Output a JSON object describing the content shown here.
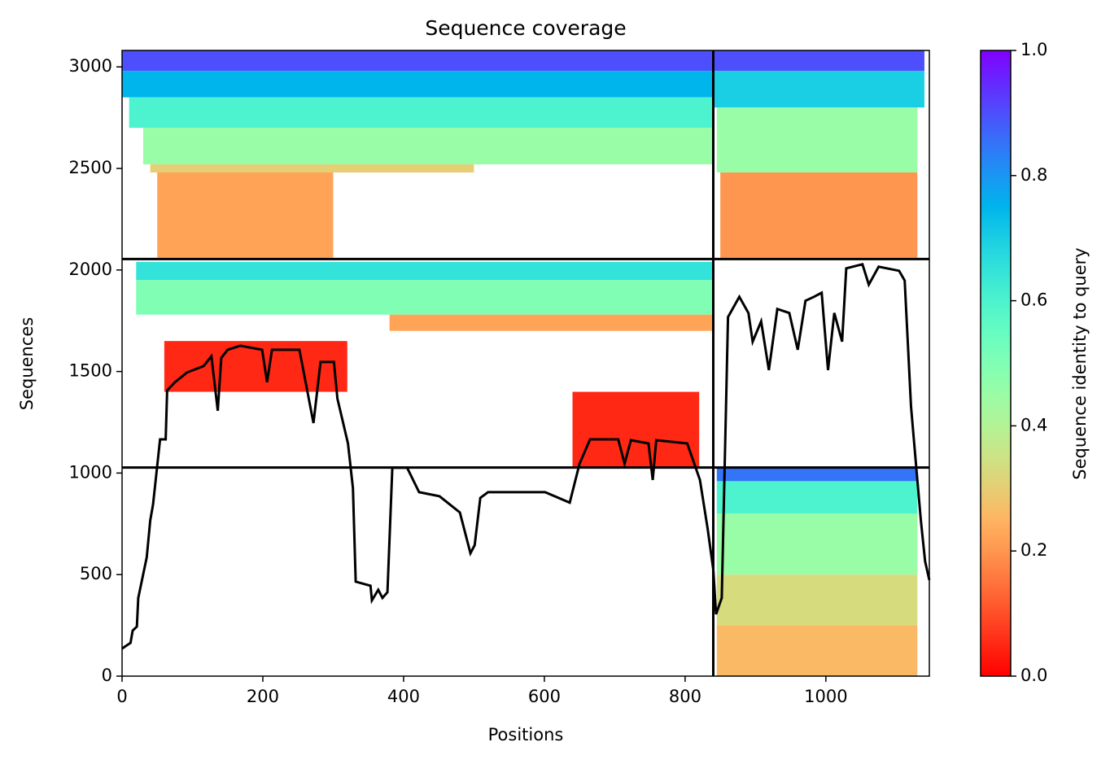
{
  "chart_data": {
    "type": "coverage",
    "title": "Sequence coverage",
    "xlabel": "Positions",
    "ylabel": "Sequences",
    "colorbar_label": "Sequence identity to query",
    "colormap": "rainbow_r",
    "xlim": [
      0,
      1147
    ],
    "ylim": [
      0,
      3081
    ],
    "xticks": [
      0,
      200,
      400,
      600,
      800,
      1000
    ],
    "yticks": [
      0,
      500,
      1000,
      1500,
      2000,
      2500,
      3000
    ],
    "clim": [
      0,
      1
    ],
    "cticks": [
      {
        "value": 0,
        "label": "0.0"
      },
      {
        "value": 0.2,
        "label": "0.2"
      },
      {
        "value": 0.4,
        "label": "0.4"
      },
      {
        "value": 0.6,
        "label": "0.6"
      },
      {
        "value": 0.8,
        "label": "0.8"
      },
      {
        "value": 1,
        "label": "1.0"
      }
    ],
    "dividers_x": [
      840
    ],
    "dividers_y": [
      1027,
      2054
    ],
    "blocks": [
      {
        "x": [
          0,
          840
        ],
        "y": [
          2980,
          3081
        ],
        "identity": 0.9
      },
      {
        "x": [
          0,
          840
        ],
        "y": [
          2850,
          2980
        ],
        "identity": 0.75
      },
      {
        "x": [
          10,
          840
        ],
        "y": [
          2700,
          2850
        ],
        "identity": 0.6
      },
      {
        "x": [
          30,
          840
        ],
        "y": [
          2520,
          2700
        ],
        "identity": 0.45
      },
      {
        "x": [
          40,
          500
        ],
        "y": [
          2480,
          2520
        ],
        "identity": 0.3
      },
      {
        "x": [
          50,
          300
        ],
        "y": [
          2060,
          2480
        ],
        "identity": 0.22
      },
      {
        "x": [
          840,
          1140
        ],
        "y": [
          2980,
          3081
        ],
        "identity": 0.9
      },
      {
        "x": [
          840,
          1140
        ],
        "y": [
          2800,
          2980
        ],
        "identity": 0.7
      },
      {
        "x": [
          845,
          1130
        ],
        "y": [
          2480,
          2800
        ],
        "identity": 0.45
      },
      {
        "x": [
          850,
          1130
        ],
        "y": [
          2060,
          2480
        ],
        "identity": 0.2
      },
      {
        "x": [
          20,
          840
        ],
        "y": [
          1950,
          2040
        ],
        "identity": 0.65
      },
      {
        "x": [
          20,
          840
        ],
        "y": [
          1780,
          1950
        ],
        "identity": 0.5
      },
      {
        "x": [
          380,
          840
        ],
        "y": [
          1700,
          1780
        ],
        "identity": 0.22
      },
      {
        "x": [
          60,
          320
        ],
        "y": [
          1400,
          1650
        ],
        "identity": 0.05
      },
      {
        "x": [
          640,
          820
        ],
        "y": [
          1027,
          1400
        ],
        "identity": 0.05
      },
      {
        "x": [
          845,
          1130
        ],
        "y": [
          960,
          1027
        ],
        "identity": 0.85
      },
      {
        "x": [
          845,
          1130
        ],
        "y": [
          800,
          960
        ],
        "identity": 0.6
      },
      {
        "x": [
          845,
          1130
        ],
        "y": [
          500,
          800
        ],
        "identity": 0.45
      },
      {
        "x": [
          845,
          1130
        ],
        "y": [
          250,
          500
        ],
        "identity": 0.33
      },
      {
        "x": [
          845,
          1130
        ],
        "y": [
          0,
          250
        ],
        "identity": 0.26
      }
    ],
    "coverage": {
      "color": "#000000",
      "x": [
        0,
        12,
        15,
        21,
        23,
        29,
        35,
        40,
        44,
        49,
        54,
        62,
        64,
        75,
        92,
        116,
        127,
        136,
        141,
        150,
        168,
        199,
        206,
        213,
        252,
        272,
        282,
        301,
        306,
        321,
        328,
        332,
        353,
        355,
        364,
        370,
        377,
        384,
        405,
        422,
        451,
        480,
        495,
        501,
        509,
        520,
        566,
        601,
        636,
        650,
        665,
        705,
        714,
        723,
        748,
        754,
        759,
        803,
        821,
        832,
        840,
        844,
        852,
        861,
        877,
        890,
        896,
        908,
        919,
        931,
        948,
        960,
        971,
        983,
        994,
        1003,
        1012,
        1023,
        1029,
        1052,
        1061,
        1075,
        1104,
        1112,
        1121,
        1129,
        1135,
        1141,
        1147
      ],
      "y": [
        136,
        164,
        224,
        244,
        385,
        485,
        585,
        766,
        846,
        1006,
        1166,
        1166,
        1407,
        1447,
        1495,
        1527,
        1575,
        1307,
        1567,
        1607,
        1627,
        1607,
        1447,
        1607,
        1607,
        1246,
        1547,
        1547,
        1367,
        1146,
        926,
        465,
        445,
        373,
        425,
        385,
        413,
        1026,
        1026,
        906,
        886,
        806,
        605,
        645,
        878,
        906,
        906,
        906,
        854,
        1046,
        1166,
        1166,
        1046,
        1162,
        1146,
        966,
        1162,
        1146,
        966,
        725,
        525,
        305,
        385,
        1768,
        1868,
        1788,
        1647,
        1747,
        1507,
        1808,
        1788,
        1607,
        1848,
        1868,
        1888,
        1507,
        1788,
        1647,
        2008,
        2028,
        1928,
        2016,
        1996,
        1948,
        1327,
        1006,
        766,
        565,
        473
      ]
    }
  }
}
